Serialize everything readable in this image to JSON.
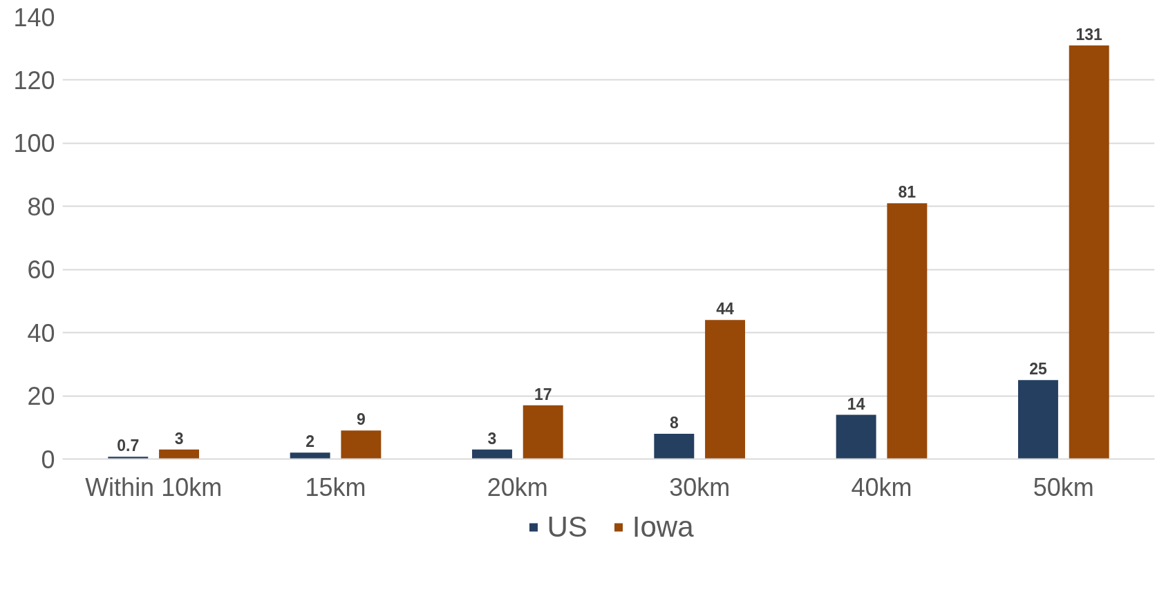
{
  "chart_data": {
    "type": "bar",
    "categories": [
      "Within 10km",
      "15km",
      "20km",
      "30km",
      "40km",
      "50km"
    ],
    "series": [
      {
        "name": "US",
        "color": "#243f60",
        "values": [
          0.7,
          2,
          3,
          8,
          14,
          25
        ]
      },
      {
        "name": "Iowa",
        "color": "#984807",
        "values": [
          3,
          9,
          17,
          44,
          81,
          131
        ]
      }
    ],
    "ylim": [
      0,
      140
    ],
    "yticks": [
      0,
      20,
      40,
      60,
      80,
      100,
      120,
      140
    ],
    "grid": "y",
    "legend": "bottom",
    "data_labels": true
  }
}
